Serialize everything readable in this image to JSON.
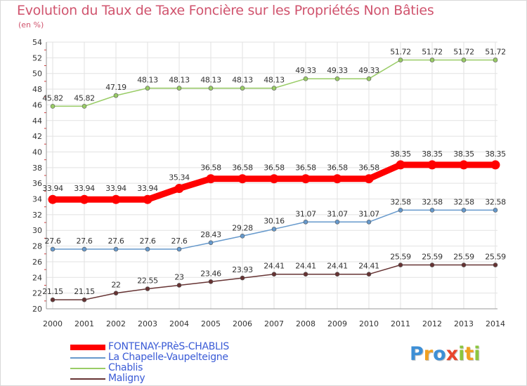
{
  "chart_data": {
    "type": "line",
    "title": "Evolution du Taux de Taxe Foncière sur les Propriétés Non Bâties",
    "unit_label": "(en %)",
    "x": [
      "2000",
      "2001",
      "2002",
      "2003",
      "2004",
      "2005",
      "2006",
      "2007",
      "2008",
      "2009",
      "2010",
      "2011",
      "2012",
      "2013",
      "2014"
    ],
    "ylim": [
      20,
      54
    ],
    "yticks": [
      20,
      22,
      24,
      26,
      28,
      30,
      32,
      34,
      36,
      38,
      40,
      42,
      44,
      46,
      48,
      50,
      52,
      54
    ],
    "grid": true,
    "legend_position": "bottom-left",
    "series": [
      {
        "name": "FONTENAY-PRèS-CHABLIS",
        "color": "#ff0000",
        "emphasis": true,
        "values": [
          33.94,
          33.94,
          33.94,
          33.94,
          35.34,
          36.58,
          36.58,
          36.58,
          36.58,
          36.58,
          36.58,
          38.35,
          38.35,
          38.35,
          38.35
        ],
        "labels": [
          "33.94",
          "33.94",
          "33.94",
          "33.94",
          "35.34",
          "36.58",
          "36.58",
          "36.58",
          "36.58",
          "36.58",
          "36.58",
          "38.35",
          "38.35",
          "38.35",
          "38.35"
        ]
      },
      {
        "name": "La Chapelle-Vaupelteigne",
        "color": "#6699cc",
        "emphasis": false,
        "values": [
          27.6,
          27.6,
          27.6,
          27.6,
          27.6,
          28.43,
          29.28,
          30.16,
          31.07,
          31.07,
          31.07,
          32.58,
          32.58,
          32.58,
          32.58
        ],
        "labels": [
          "27.6",
          "27.6",
          "27.6",
          "27.6",
          "27.6",
          "28.43",
          "29.28",
          "30.16",
          "31.07",
          "31.07",
          "31.07",
          "32.58",
          "32.58",
          "32.58",
          "32.58"
        ]
      },
      {
        "name": "Chablis",
        "color": "#99cc66",
        "emphasis": false,
        "values": [
          45.82,
          45.82,
          47.19,
          48.13,
          48.13,
          48.13,
          48.13,
          48.13,
          49.33,
          49.33,
          49.33,
          51.72,
          51.72,
          51.72,
          51.72
        ],
        "labels": [
          "45.82",
          "45.82",
          "47.19",
          "48.13",
          "48.13",
          "48.13",
          "48.13",
          "48.13",
          "49.33",
          "49.33",
          "49.33",
          "51.72",
          "51.72",
          "51.72",
          "51.72"
        ]
      },
      {
        "name": "Maligny",
        "color": "#663333",
        "emphasis": false,
        "values": [
          21.15,
          21.15,
          22,
          22.55,
          23,
          23.46,
          23.93,
          24.41,
          24.41,
          24.41,
          24.41,
          25.59,
          25.59,
          25.59,
          25.59
        ],
        "labels": [
          "21.15",
          "21.15",
          "22",
          "22.55",
          "23",
          "23.46",
          "23.93",
          "24.41",
          "24.41",
          "24.41",
          "24.41",
          "25.59",
          "25.59",
          "25.59",
          "25.59"
        ]
      }
    ]
  },
  "brand": {
    "letters": [
      {
        "ch": "P",
        "color": "#3d8fd6"
      },
      {
        "ch": "r",
        "color": "#f0a020"
      },
      {
        "ch": "o",
        "color": "#3d8fd6"
      },
      {
        "ch": "x",
        "color": "#e8452c"
      },
      {
        "ch": "i",
        "color": "#8cc63f"
      },
      {
        "ch": "t",
        "color": "#f0a020"
      },
      {
        "ch": "i",
        "color": "#8cc63f"
      }
    ]
  }
}
